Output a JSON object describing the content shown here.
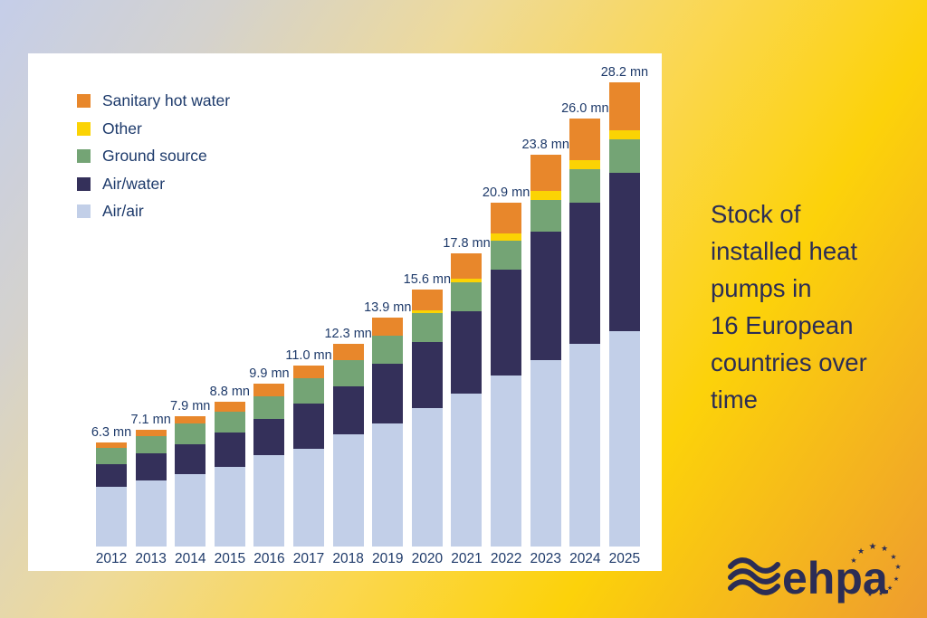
{
  "colors": {
    "background_gradient": [
      "#c5cee9",
      "#eeda9a",
      "#fcd20a",
      "#ee9c2f"
    ],
    "panel": "#ffffff",
    "chart_text": "#1e3a6a",
    "caption_text": "#2b2d55",
    "logo": "#2b2d55"
  },
  "side_caption": {
    "text": "Stock of\ninstalled heat\npumps in\n16 European\ncountries over\ntime"
  },
  "logo": {
    "text": "ehpa",
    "waves_icon": "triple-wave-icon",
    "stars_icon": "eu-stars-icon"
  },
  "chart_data": {
    "type": "bar",
    "stacked": true,
    "title": "Stock of installed heat pumps in 16 European countries over time",
    "unit": "mn",
    "legend_position": "top-left",
    "y_axis_visible": false,
    "x_axis_visible": true,
    "ylim": [
      0,
      28.2
    ],
    "categories": [
      "2012",
      "2013",
      "2014",
      "2015",
      "2016",
      "2017",
      "2018",
      "2019",
      "2020",
      "2021",
      "2022",
      "2023",
      "2024",
      "2025"
    ],
    "series": [
      {
        "name": "Air/air",
        "color": "#c2cfe8",
        "values": [
          3.6,
          4.0,
          4.4,
          4.85,
          5.55,
          5.95,
          6.8,
          7.5,
          8.4,
          9.3,
          10.4,
          11.3,
          12.3,
          13.1
        ]
      },
      {
        "name": "Air/water",
        "color": "#34305a",
        "values": [
          1.4,
          1.65,
          1.8,
          2.05,
          2.2,
          2.75,
          2.9,
          3.6,
          4.0,
          5.0,
          6.4,
          7.8,
          8.6,
          9.6
        ]
      },
      {
        "name": "Ground source",
        "color": "#74a475",
        "values": [
          1.0,
          1.05,
          1.3,
          1.3,
          1.4,
          1.5,
          1.6,
          1.7,
          1.8,
          1.75,
          1.8,
          1.95,
          2.0,
          2.0
        ]
      },
      {
        "name": "Other",
        "color": "#fbd304",
        "values": [
          0,
          0,
          0,
          0,
          0,
          0,
          0,
          0,
          0.15,
          0.2,
          0.4,
          0.55,
          0.55,
          0.55
        ]
      },
      {
        "name": "Sanitary hot water",
        "color": "#e8872b",
        "values": [
          0.3,
          0.4,
          0.4,
          0.6,
          0.75,
          0.8,
          1.0,
          1.1,
          1.25,
          1.55,
          1.9,
          2.2,
          2.55,
          2.95
        ]
      }
    ],
    "totals": [
      6.3,
      7.1,
      7.9,
      8.8,
      9.9,
      11.0,
      12.3,
      13.9,
      15.6,
      17.8,
      20.9,
      23.8,
      26.0,
      28.2
    ],
    "total_labels": [
      "6.3 mn",
      "7.1 mn",
      "7.9 mn",
      "8.8 mn",
      "9.9 mn",
      "11.0 mn",
      "12.3 mn",
      "13.9 mn",
      "15.6 mn",
      "17.8 mn",
      "20.9 mn",
      "23.8 mn",
      "26.0 mn",
      "28.2 mn"
    ],
    "legend": [
      {
        "label": "Sanitary hot water",
        "color": "#e8872b"
      },
      {
        "label": "Other",
        "color": "#fbd304"
      },
      {
        "label": "Ground source",
        "color": "#74a475"
      },
      {
        "label": "Air/water",
        "color": "#34305a"
      },
      {
        "label": "Air/air",
        "color": "#c2cfe8"
      }
    ]
  }
}
